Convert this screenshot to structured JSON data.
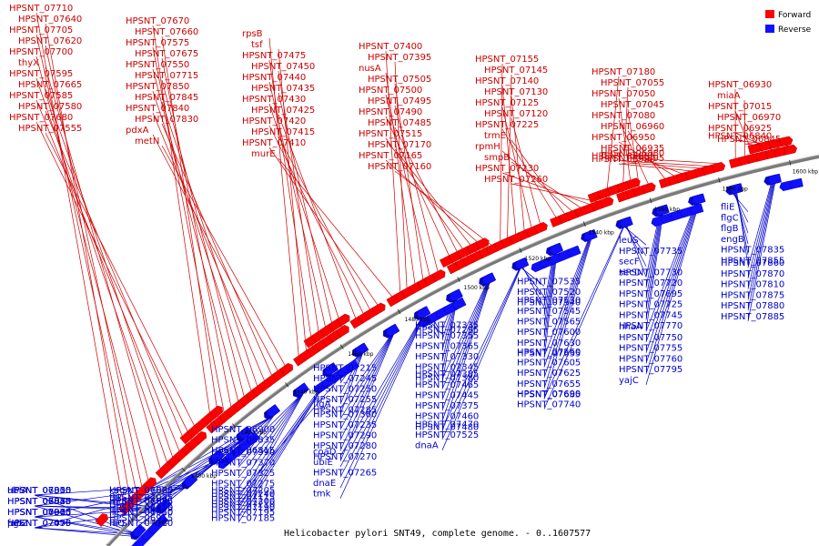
{
  "caption": "Helicobacter pylori SNT49, complete genome. - 0..1607577",
  "legend": [
    {
      "label": "Forward",
      "color": "#ff0000"
    },
    {
      "label": "Reverse",
      "color": "#1010ff"
    }
  ],
  "colors": {
    "forward_line": "#cc0000",
    "reverse_line": "#0000cc",
    "backbone": "#7a7a7a"
  },
  "ticks": [
    "1380 kbp",
    "1400 kbp",
    "1420 kbp",
    "1440 kbp",
    "1460 kbp",
    "1480 kbp",
    "1500 kbp",
    "1520 kbp",
    "1540 kbp",
    "1560 kbp",
    "1580 kbp",
    "1600 kbp"
  ],
  "forward_labels": [
    "HPSNT_07710",
    "HPSNT_07640",
    "HPSNT_07705",
    "HPSNT_07620",
    "HPSNT_07700",
    "thyX",
    "HPSNT_07595",
    "HPSNT_07665",
    "HPSNT_07585",
    "HPSNT_07580",
    "HPSNT_07680",
    "HPSNT_07555",
    "HPSNT_07670",
    "HPSNT_07660",
    "HPSNT_07575",
    "HPSNT_07675",
    "HPSNT_07550",
    "HPSNT_07715",
    "HPSNT_07850",
    "HPSNT_07845",
    "HPSNT_07840",
    "HPSNT_07830",
    "pdxA",
    "metN",
    "rpsB",
    "tsf",
    "HPSNT_07475",
    "HPSNT_07450",
    "HPSNT_07440",
    "HPSNT_07435",
    "HPSNT_07430",
    "HPSNT_07425",
    "HPSNT_07420",
    "HPSNT_07415",
    "HPSNT_07410",
    "murE",
    "HPSNT_07400",
    "HPSNT_07395",
    "nusA",
    "HPSNT_07505",
    "HPSNT_07500",
    "HPSNT_07495",
    "HPSNT_07490",
    "HPSNT_07485",
    "HPSNT_07515",
    "HPSNT_07170",
    "HPSNT_07165",
    "HPSNT_07160",
    "HPSNT_07155",
    "HPSNT_07145",
    "HPSNT_07140",
    "HPSNT_07130",
    "HPSNT_07125",
    "HPSNT_07120",
    "HPSNT_07225",
    "trmE",
    "rpmH",
    "smpB",
    "HPSNT_07230",
    "HPSNT_07260",
    "HPSNT_07180",
    "HPSNT_07055",
    "HPSNT_07050",
    "HPSNT_07045",
    "HPSNT_07080",
    "HPSNT_06960",
    "HPSNT_06950",
    "HPSNT_06935",
    "HPSNT_06920",
    "HPSNT_06895",
    "HPSNT_06885",
    "HPSNT_06880",
    "HPSNT_06930",
    "miaA",
    "HPSNT_07015",
    "HPSNT_06970",
    "HPSNT_06925",
    "HPSNT_06845",
    "HPSNT_06840"
  ],
  "reverse_labels": [
    "HPSNT_07455",
    "HPSNT_07310",
    "HPSNT_07340",
    "HPSNT_07315",
    "HPSNT_07070",
    "HPSNT_07065",
    "HPSNT_06855",
    "HPSNT_06850",
    "fabZ",
    "HPSNT_06905",
    "HPSNT_06825",
    "ubiA",
    "pgk",
    "HPSNT_07075",
    "HPSNT_07030",
    "HPSNT_07000",
    "HPSNT_07025",
    "HPSNT_06955",
    "fliI",
    "HPSNT_07010",
    "HPSNT_06915",
    "HPSNT_06910",
    "murB",
    "HPSNT_07020",
    "fliQ",
    "ileS",
    "HPSNT_07035",
    "ksgA",
    "HPSNT_07110",
    "HPSNT_07060",
    "HPSNT_06875",
    "HPSNT_06865",
    "HPSNT_06900",
    "HPSNT_06835",
    "HPSNT_06815",
    "clpX",
    "HPSNT_07390",
    "HPSNT_07370",
    "HPSNT_07325",
    "HPSNT_07275",
    "HPSNT_07240",
    "HPSNT_07210",
    "HPSNT_07115",
    "HPSNT_07190",
    "HPSNT_07185",
    "HPSNT_07195",
    "HPSNT_07200",
    "HPSNT_07205",
    "HPSNT_07215",
    "HPSNT_07245",
    "HPSNT_07250",
    "HPSNT_07255",
    "HPSNT_07285",
    "flgA",
    "HPSNT_07360",
    "HPSNT_07235",
    "HPSNT_07290",
    "HPSNT_07280",
    "HPSNT_07270",
    "coaD",
    "ubiE",
    "HPSNT_07265",
    "dnaE",
    "tmk",
    "HPSNT_07295",
    "HPSNT_07335",
    "HPSNT_07355",
    "HPSNT_07365",
    "HPSNT_07330",
    "HPSNT_07345",
    "HPSNT_07380",
    "HPSNT_07385",
    "HPSNT_07465",
    "HPSNT_07445",
    "HPSNT_07375",
    "HPSNT_07460",
    "HPSNT_07480",
    "HPSNT_07470",
    "HPSNT_07525",
    "dnaA",
    "HPSNT_07535",
    "HPSNT_07520",
    "HPSNT_07540",
    "HPSNT_07530",
    "HPSNT_07545",
    "HPSNT_07565",
    "HPSNT_07600",
    "HPSNT_07630",
    "HPSNT_07635",
    "HPSNT_07560",
    "HPSNT_07605",
    "HPSNT_07625",
    "HPSNT_07655",
    "HPSNT_07685",
    "HPSNT_07690",
    "HPSNT_07740",
    "leuS",
    "HPSNT_07735",
    "secF",
    "HPSNT_07730",
    "secD",
    "HPSNT_07720",
    "HPSNT_07695",
    "HPSNT_07725",
    "HPSNT_07745",
    "HPSNT_07770",
    "nhaA",
    "HPSNT_07750",
    "HPSNT_07755",
    "HPSNT_07760",
    "HPSNT_07795",
    "yajC",
    "fliE",
    "flgC",
    "flgB",
    "engB",
    "HPSNT_07835",
    "HPSNT_07855",
    "HPSNT_07860",
    "HPSNT_07870",
    "HPSNT_07810",
    "HPSNT_07875",
    "HPSNT_07880",
    "HPSNT_07885"
  ]
}
